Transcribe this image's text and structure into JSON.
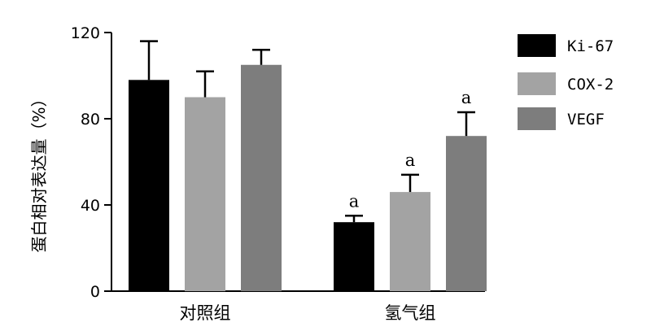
{
  "chart_data": {
    "type": "bar",
    "ylabel": "蛋白相对表达量（%）",
    "xlabel": "",
    "ylim": [
      0,
      120
    ],
    "yticks": [
      0,
      40,
      80,
      120
    ],
    "categories": [
      "对照组",
      "氢气组"
    ],
    "series": [
      {
        "name": "Ki-67",
        "color": "#000000",
        "values": [
          98,
          32
        ],
        "errors": [
          18,
          3
        ],
        "annotations": [
          "",
          "a"
        ]
      },
      {
        "name": "COX-2",
        "color": "#a3a3a3",
        "values": [
          90,
          46
        ],
        "errors": [
          12,
          8
        ],
        "annotations": [
          "",
          "a"
        ]
      },
      {
        "name": "VEGF",
        "color": "#7d7d7d",
        "values": [
          105,
          72
        ],
        "errors": [
          7,
          11
        ],
        "annotations": [
          "",
          "a"
        ]
      }
    ],
    "legend_position": "right",
    "grid": false
  }
}
